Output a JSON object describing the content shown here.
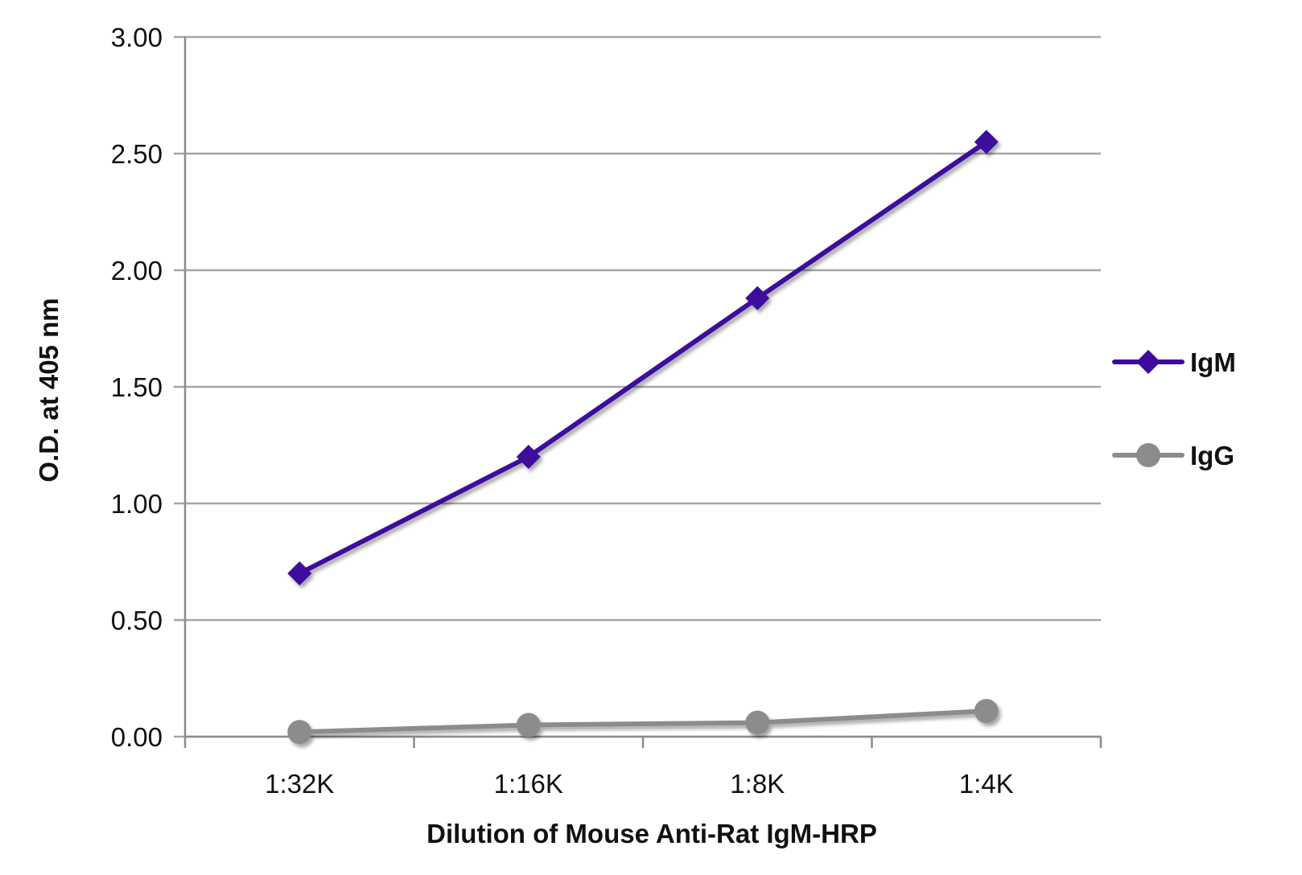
{
  "chart_data": {
    "type": "line",
    "title": "",
    "xlabel": "Dilution of Mouse Anti-Rat IgM-HRP",
    "ylabel": "O.D. at 405 nm",
    "categories": [
      "1:32K",
      "1:16K",
      "1:8K",
      "1:4K"
    ],
    "ylim": [
      0,
      3
    ],
    "yticks": [
      "0.00",
      "0.50",
      "1.00",
      "1.50",
      "2.00",
      "2.50",
      "3.00"
    ],
    "grid": true,
    "legend_position": "right",
    "series": [
      {
        "name": "IgM",
        "values": [
          0.7,
          1.2,
          1.88,
          2.55
        ],
        "color": "#3d0a9c",
        "marker": "diamond"
      },
      {
        "name": "IgG",
        "values": [
          0.02,
          0.05,
          0.06,
          0.11
        ],
        "color": "#8c8c8c",
        "marker": "circle"
      }
    ],
    "colors": {
      "grid": "#a6a6a6",
      "axis": "#8c8c8c"
    }
  }
}
